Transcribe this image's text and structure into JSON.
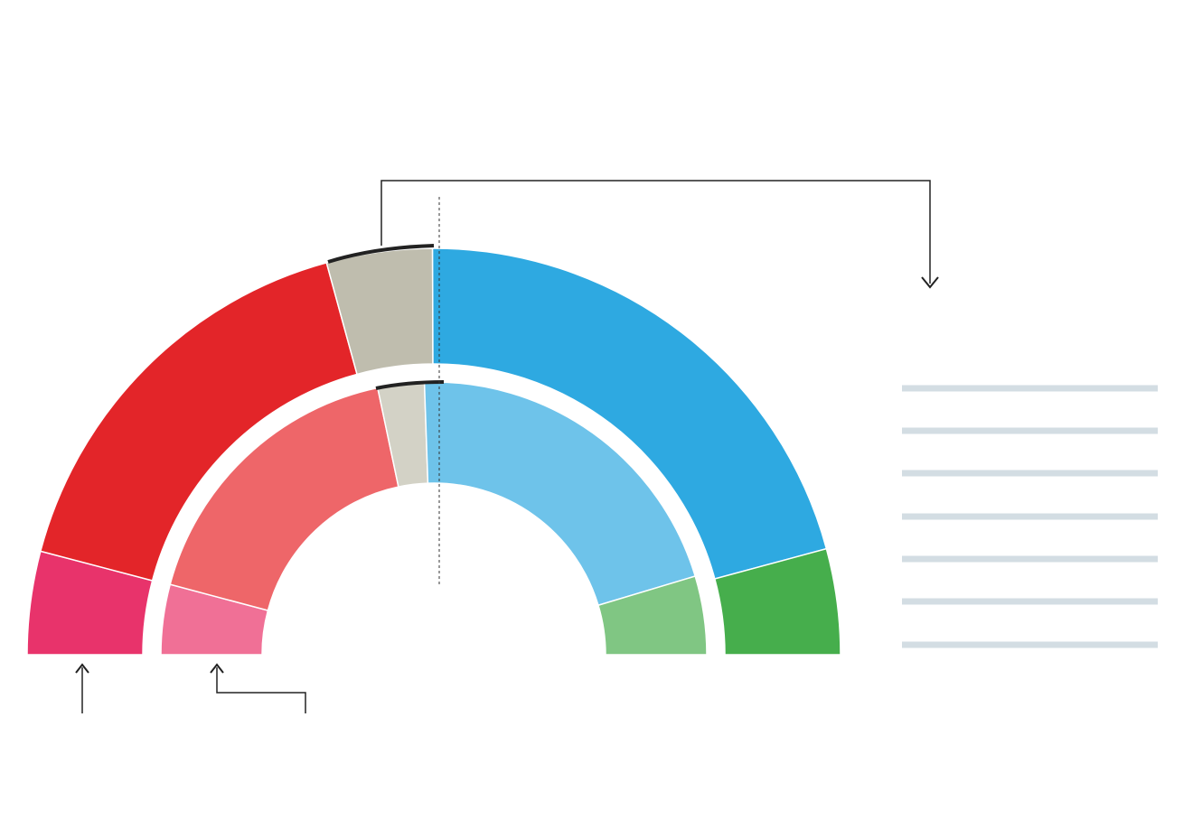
{
  "chart_data": {
    "type": "semi-donut",
    "series": [
      {
        "ring": "outer",
        "values": [
          8.2,
          33.3,
          8.4,
          41.7,
          8.4
        ],
        "colors": [
          "#e8336b",
          "#e32529",
          "#bfbdae",
          "#2ea9e1",
          "#46ae4c"
        ]
      },
      {
        "ring": "inner",
        "values": [
          8.3,
          35.1,
          5.5,
          41.8,
          9.3
        ],
        "colors": [
          "#f07096",
          "#ee6669",
          "#d3d2c6",
          "#6ec3ea",
          "#80c683"
        ]
      }
    ]
  }
}
